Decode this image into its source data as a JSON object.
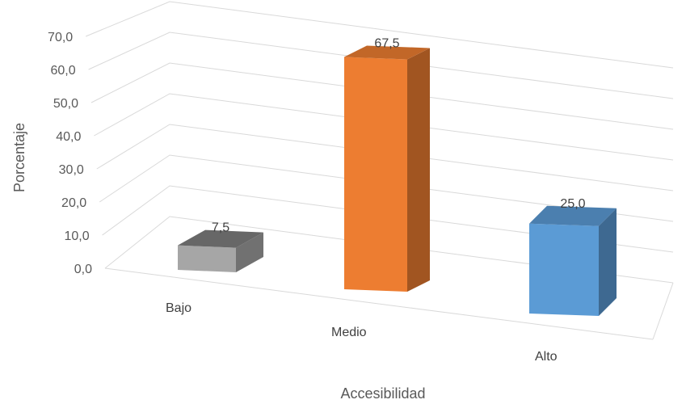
{
  "chart_data": {
    "type": "bar",
    "categories": [
      "Bajo",
      "Medio",
      "Alto"
    ],
    "values": [
      7.5,
      67.5,
      25.0
    ],
    "value_labels": [
      "7,5",
      "67,5",
      "25,0"
    ],
    "ytick_labels": [
      "0,0",
      "10,0",
      "20,0",
      "30,0",
      "40,0",
      "50,0",
      "60,0",
      "70,0"
    ],
    "ylim": [
      0,
      70
    ],
    "xlabel": "Accesibilidad",
    "ylabel": "Porcentaje",
    "grid": true,
    "legend": "none",
    "three_d": true,
    "colors": [
      "#a6a6a6",
      "#ed7d31",
      "#5b9bd5"
    ]
  }
}
